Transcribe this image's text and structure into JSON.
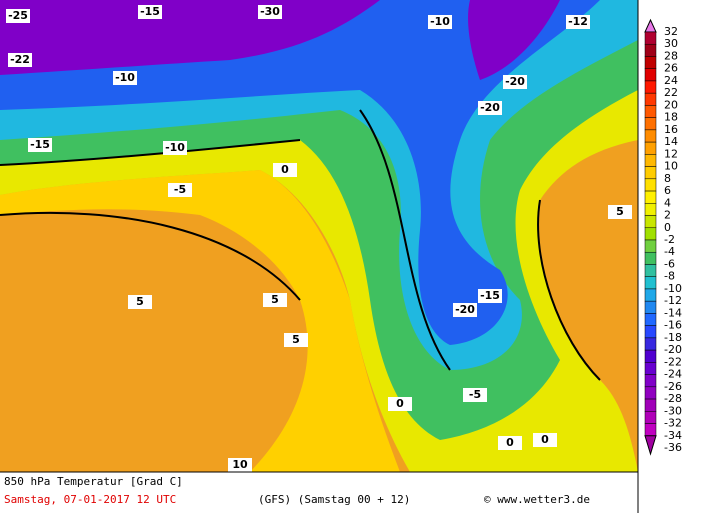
{
  "colorbar": {
    "labels": [
      32,
      30,
      28,
      26,
      24,
      22,
      20,
      18,
      16,
      14,
      12,
      10,
      8,
      6,
      4,
      2,
      0,
      -2,
      -4,
      -6,
      -8,
      -10,
      -12,
      -14,
      -16,
      -18,
      -20,
      -22,
      -24,
      -26,
      -28,
      -30,
      -32,
      -34,
      -36
    ],
    "colors": [
      "#e878e8",
      "#b00030",
      "#a00018",
      "#c00000",
      "#e00000",
      "#ff1800",
      "#ff3800",
      "#ff5800",
      "#ff7000",
      "#ff8c00",
      "#ffa000",
      "#ffb800",
      "#ffcc00",
      "#ffe000",
      "#fff000",
      "#f0f000",
      "#c8e600",
      "#a0e000",
      "#70d040",
      "#40c060",
      "#30c0a0",
      "#20c0d0",
      "#20a8e8",
      "#2088f0",
      "#2068ff",
      "#2848ff",
      "#3828e0",
      "#5000d0",
      "#6800d0",
      "#8000c8",
      "#9000c0",
      "#a000b8",
      "#b000b8",
      "#c000c0",
      "#a000a0"
    ]
  },
  "map_labels": [
    "-25",
    "-15",
    "-30",
    "-10",
    "-12",
    "-20",
    "-20",
    "-10",
    "-5",
    "0",
    "5",
    "5",
    "5",
    "0",
    "-5",
    "-15",
    "-20",
    "0",
    "5",
    "10",
    "0",
    "-15",
    "-10",
    "-22"
  ],
  "footer": {
    "title": "850 hPa Temperatur [Grad C]",
    "date": "Samstag, 07-01-2017  12 UTC",
    "model": "(GFS)  (Samstag 00 + 12)",
    "credit": "© www.wetter3.de"
  }
}
